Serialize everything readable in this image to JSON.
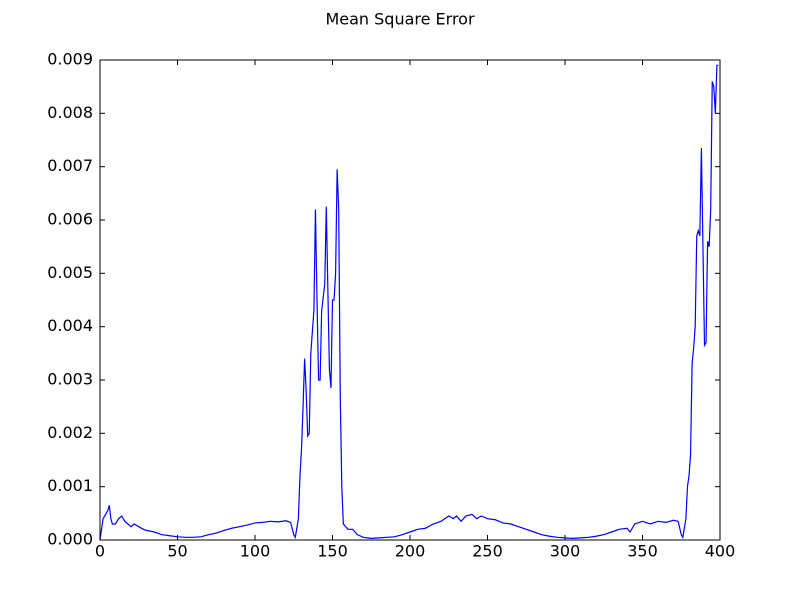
{
  "chart_data": {
    "type": "line",
    "title": "Mean Square Error",
    "color": "#0000ff",
    "x": [
      0,
      1,
      2,
      4,
      5,
      6,
      7,
      8,
      10,
      12,
      14,
      16,
      18,
      20,
      22,
      25,
      28,
      30,
      35,
      40,
      45,
      50,
      55,
      60,
      65,
      70,
      75,
      80,
      85,
      90,
      95,
      100,
      105,
      110,
      115,
      120,
      123,
      125,
      126,
      128,
      129,
      130,
      131,
      132,
      133,
      134,
      135,
      136,
      138,
      139,
      140,
      141,
      142,
      143,
      145,
      146,
      147,
      148,
      149,
      150,
      151,
      152,
      153,
      154,
      155,
      156,
      157,
      160,
      163,
      166,
      170,
      175,
      180,
      185,
      190,
      195,
      200,
      205,
      210,
      215,
      220,
      225,
      228,
      230,
      233,
      236,
      240,
      243,
      246,
      250,
      255,
      260,
      265,
      270,
      275,
      280,
      285,
      290,
      295,
      300,
      305,
      310,
      315,
      320,
      325,
      330,
      335,
      340,
      342,
      345,
      350,
      355,
      360,
      365,
      370,
      373,
      375,
      376,
      378,
      379,
      380,
      381,
      382,
      383,
      384,
      385,
      386,
      387,
      388,
      389,
      390,
      391,
      392,
      393,
      394,
      395,
      396,
      397,
      398,
      399
    ],
    "values": [
      0,
      0.0002,
      0.0004,
      0.0005,
      0.00055,
      0.00065,
      0.0004,
      0.0003,
      0.0003,
      0.0004,
      0.00045,
      0.00035,
      0.0003,
      0.00025,
      0.0003,
      0.00025,
      0.0002,
      0.00018,
      0.00015,
      0.0001,
      8e-05,
      6e-05,
      5e-05,
      5e-05,
      6e-05,
      0.0001,
      0.00013,
      0.00018,
      0.00022,
      0.00025,
      0.00028,
      0.00032,
      0.00033,
      0.00035,
      0.00034,
      0.00036,
      0.00033,
      0.0001,
      5e-05,
      0.0004,
      0.0012,
      0.0017,
      0.0025,
      0.0034,
      0.0028,
      0.00195,
      0.002,
      0.0035,
      0.0043,
      0.0062,
      0.0045,
      0.003,
      0.003,
      0.0043,
      0.0048,
      0.00625,
      0.0047,
      0.0032,
      0.00285,
      0.0045,
      0.0045,
      0.005,
      0.00695,
      0.0062,
      0.0027,
      0.001,
      0.0003,
      0.0002,
      0.0002,
      0.0001,
      5e-05,
      3e-05,
      4e-05,
      5e-05,
      6e-05,
      0.0001,
      0.00015,
      0.0002,
      0.00022,
      0.0003,
      0.00035,
      0.00045,
      0.0004,
      0.00045,
      0.00035,
      0.00045,
      0.00048,
      0.0004,
      0.00045,
      0.0004,
      0.00038,
      0.00032,
      0.0003,
      0.00025,
      0.0002,
      0.00015,
      0.0001,
      7e-05,
      5e-05,
      4e-05,
      3e-05,
      4e-05,
      5e-05,
      7e-05,
      0.0001,
      0.00015,
      0.0002,
      0.00022,
      0.00015,
      0.0003,
      0.00035,
      0.0003,
      0.00035,
      0.00033,
      0.00037,
      0.00035,
      0.0001,
      5e-05,
      0.0004,
      0.001,
      0.0012,
      0.0016,
      0.0033,
      0.0036,
      0.004,
      0.0057,
      0.0058,
      0.0057,
      0.00735,
      0.0055,
      0.00365,
      0.0037,
      0.0056,
      0.0055,
      0.0062,
      0.0086,
      0.0085,
      0.008,
      0.0089,
      0.0089
    ],
    "xlim": [
      0,
      400
    ],
    "xticks": [
      0,
      50,
      100,
      150,
      200,
      250,
      300,
      350,
      400
    ],
    "ylim": [
      0,
      0.009
    ],
    "yticks": [
      {
        "value": 0,
        "label": "0.000"
      },
      {
        "value": 0.001,
        "label": "0.001"
      },
      {
        "value": 0.002,
        "label": "0.002"
      },
      {
        "value": 0.003,
        "label": "0.003"
      },
      {
        "value": 0.004,
        "label": "0.004"
      },
      {
        "value": 0.005,
        "label": "0.005"
      },
      {
        "value": 0.006,
        "label": "0.006"
      },
      {
        "value": 0.007,
        "label": "0.007"
      },
      {
        "value": 0.008,
        "label": "0.008"
      },
      {
        "value": 0.009,
        "label": "0.009"
      }
    ]
  }
}
